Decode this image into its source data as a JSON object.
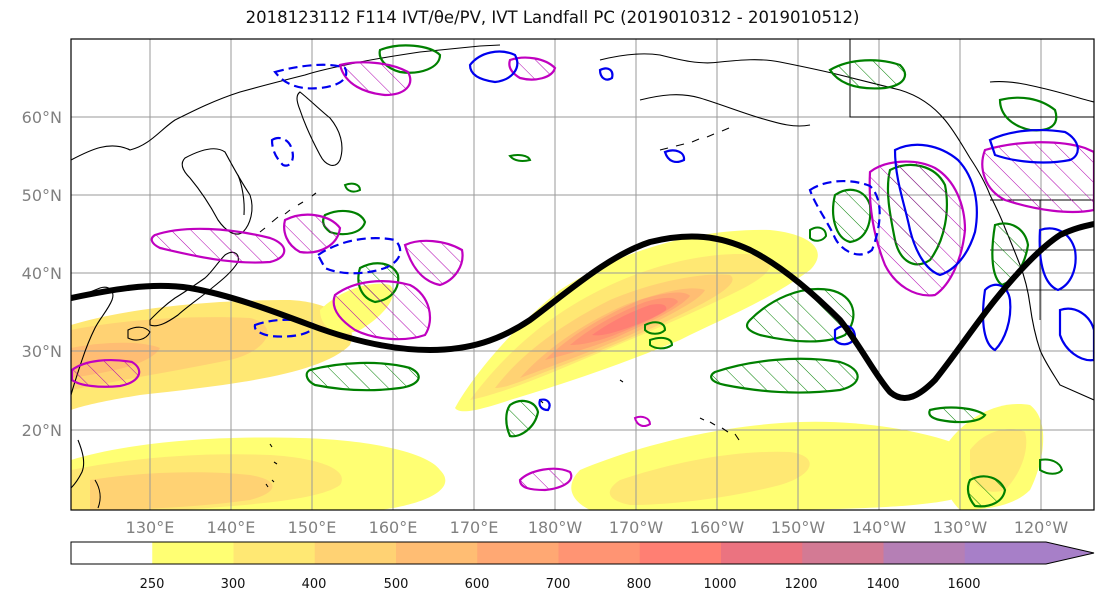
{
  "title": "2018123112 F114 IVT/θe/PV, IVT Landfall PC (2019010312 - 2019010512)",
  "map": {
    "lat_labels": [
      "60°N",
      "50°N",
      "40°N",
      "30°N",
      "20°N"
    ],
    "lon_labels": [
      "130°E",
      "140°E",
      "150°E",
      "160°E",
      "170°E",
      "180°W",
      "170°W",
      "160°W",
      "150°W",
      "140°W",
      "130°W",
      "120°W"
    ],
    "extent": {
      "lon_min": 120,
      "lon_max": 247.5,
      "lat_min": 10,
      "lat_max": 70
    }
  },
  "colorbar": {
    "ticks": [
      "250",
      "300",
      "400",
      "500",
      "600",
      "700",
      "800",
      "1000",
      "1200",
      "1400",
      "1600"
    ],
    "colors": [
      "#ffffff",
      "#ffff73",
      "#ffe873",
      "#ffd273",
      "#ffbd73",
      "#ffa873",
      "#ff9473",
      "#ff7f73",
      "#eb7380",
      "#d37a94",
      "#b57fb5",
      "#a77fc8"
    ]
  },
  "legend_colors": {
    "ivt_axis": "#000000",
    "pv_contour": "#0000ee",
    "theta_e_positive": "#008000",
    "theta_e_negative": "#c000c0"
  }
}
